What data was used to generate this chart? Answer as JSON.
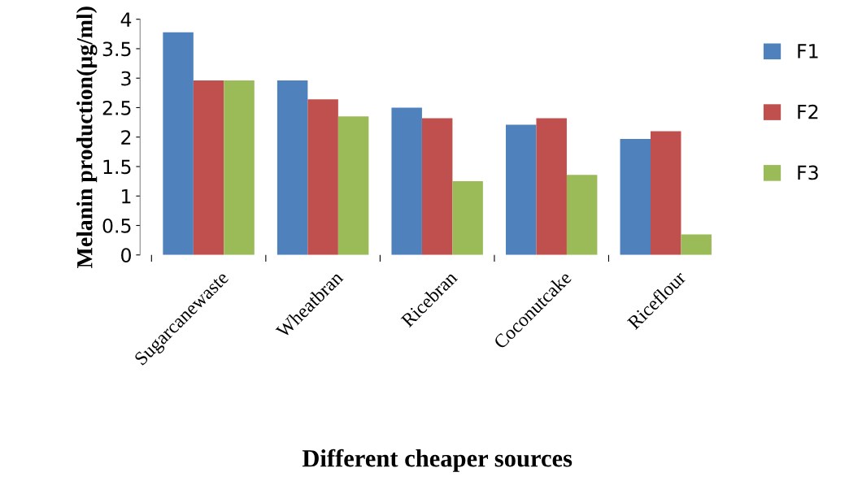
{
  "chart_data": {
    "type": "bar",
    "xlabel": "Different cheaper sources",
    "ylabel": "Melanin production(µg/ml)",
    "categories": [
      "Sugarcanewaste",
      "Wheatbran",
      "Ricebran",
      "Coconutcake",
      "Riceflour"
    ],
    "series": [
      {
        "name": "F1",
        "color": "#4f81bd",
        "values": [
          3.78,
          2.96,
          2.5,
          2.21,
          1.97
        ]
      },
      {
        "name": "F2",
        "color": "#c0504d",
        "values": [
          2.96,
          2.64,
          2.32,
          2.32,
          2.1
        ]
      },
      {
        "name": "F3",
        "color": "#9bbb59",
        "values": [
          2.96,
          2.35,
          1.25,
          1.36,
          0.35
        ]
      }
    ],
    "ylim": [
      0,
      4
    ],
    "yticks": [
      0,
      0.5,
      1,
      1.5,
      2,
      2.5,
      3,
      3.5,
      4
    ],
    "grid": false,
    "legend": "right"
  }
}
